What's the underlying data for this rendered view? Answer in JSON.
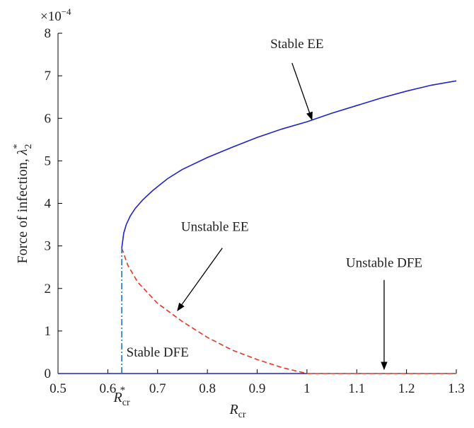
{
  "chart_data": {
    "type": "line",
    "title": "",
    "y_multiplier": "×10",
    "y_multiplier_exp": "−4",
    "xlabel": {
      "base": "R",
      "sub": "cr"
    },
    "ylabel": {
      "text": "Force of infection, ",
      "symbol": "λ",
      "sub": "2",
      "sup": "*"
    },
    "xlim": [
      0.5,
      1.3
    ],
    "ylim": [
      0,
      8
    ],
    "xticks": [
      0.5,
      0.6,
      0.7,
      0.8,
      0.9,
      1,
      1.1,
      1.2,
      1.3
    ],
    "xtick_labels": [
      "0.5",
      "0.6",
      "0.7",
      "0.8",
      "0.9",
      "1",
      "1.1",
      "1.2",
      "1.3"
    ],
    "yticks": [
      0,
      1,
      2,
      3,
      4,
      5,
      6,
      7,
      8
    ],
    "ytick_labels": [
      "0",
      "1",
      "2",
      "3",
      "4",
      "5",
      "6",
      "7",
      "8"
    ],
    "grid": false,
    "threshold_label": {
      "base": "R",
      "sub": "cr",
      "sup": "*",
      "x": 0.628
    },
    "series": [
      {
        "id": "stable-ee",
        "color": "#2222cc",
        "style": "solid",
        "x": [
          0.628,
          0.632,
          0.637,
          0.645,
          0.655,
          0.67,
          0.69,
          0.72,
          0.75,
          0.8,
          0.85,
          0.9,
          0.95,
          1.0,
          1.05,
          1.1,
          1.15,
          1.2,
          1.25,
          1.3
        ],
        "y": [
          2.95,
          3.3,
          3.5,
          3.7,
          3.88,
          4.08,
          4.3,
          4.58,
          4.8,
          5.08,
          5.32,
          5.55,
          5.75,
          5.92,
          6.12,
          6.3,
          6.48,
          6.64,
          6.78,
          6.88
        ]
      },
      {
        "id": "unstable-ee",
        "color": "#ee3322",
        "style": "dashed",
        "x": [
          0.628,
          0.64,
          0.66,
          0.7,
          0.75,
          0.8,
          0.85,
          0.9,
          0.95,
          1.0
        ],
        "y": [
          2.95,
          2.55,
          2.15,
          1.65,
          1.22,
          0.85,
          0.55,
          0.33,
          0.14,
          0.0
        ]
      },
      {
        "id": "stable-dfe",
        "color": "#2222cc",
        "style": "solid",
        "x": [
          0.5,
          1.0
        ],
        "y": [
          0.0,
          0.0
        ]
      },
      {
        "id": "unstable-dfe",
        "color": "#ee3322",
        "style": "dashed",
        "x": [
          1.0,
          1.3
        ],
        "y": [
          0.0,
          0.0
        ]
      },
      {
        "id": "threshold-line",
        "color": "#2277bb",
        "style": "dashdot",
        "x": [
          0.628,
          0.628
        ],
        "y": [
          0.0,
          2.95
        ]
      }
    ],
    "annotations": [
      {
        "id": "stable-ee",
        "text": "Stable EE",
        "text_at": [
          0.98,
          7.65
        ],
        "arrow_from": [
          0.97,
          7.3
        ],
        "arrow_to": [
          1.01,
          5.97
        ]
      },
      {
        "id": "unstable-ee",
        "text": "Unstable EE",
        "text_at": [
          0.815,
          3.35
        ],
        "arrow_from": [
          0.83,
          2.95
        ],
        "arrow_to": [
          0.74,
          1.48
        ]
      },
      {
        "id": "unstable-dfe",
        "text": "Unstable DFE",
        "text_at": [
          1.155,
          2.5
        ],
        "arrow_from": [
          1.155,
          2.2
        ],
        "arrow_to": [
          1.155,
          0.1
        ]
      },
      {
        "id": "stable-dfe",
        "text": "Stable DFE",
        "text_at": [
          0.7,
          0.4
        ]
      }
    ]
  }
}
